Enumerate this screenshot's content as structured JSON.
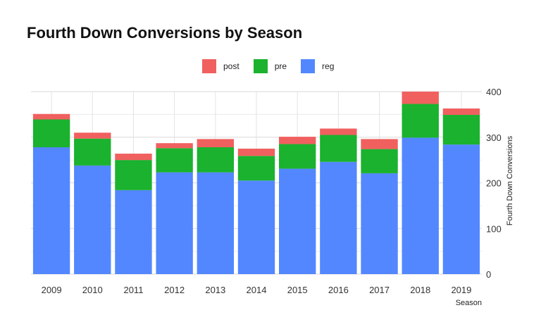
{
  "chart_data": {
    "type": "bar",
    "stacked": true,
    "title": "Fourth Down Conversions by Season",
    "xlabel": "Season",
    "ylabel": "Fourth Down Conversions",
    "y_axis_position": "right",
    "legend_position": "top",
    "grid": true,
    "ylim": [
      0,
      400
    ],
    "yticks": [
      0,
      100,
      200,
      300,
      400
    ],
    "categories": [
      "2009",
      "2010",
      "2011",
      "2012",
      "2013",
      "2014",
      "2015",
      "2016",
      "2017",
      "2018",
      "2019"
    ],
    "series": [
      {
        "name": "reg",
        "color": "#5387FF",
        "values": [
          278,
          238,
          184,
          223,
          223,
          205,
          231,
          246,
          221,
          299,
          284
        ]
      },
      {
        "name": "pre",
        "color": "#1AB22E",
        "values": [
          61,
          59,
          66,
          53,
          55,
          54,
          54,
          59,
          53,
          74,
          65
        ]
      },
      {
        "name": "post",
        "color": "#F0605F",
        "values": [
          12,
          13,
          14,
          11,
          18,
          16,
          16,
          14,
          22,
          27,
          14
        ]
      }
    ],
    "legend_order": [
      "post",
      "pre",
      "reg"
    ]
  }
}
